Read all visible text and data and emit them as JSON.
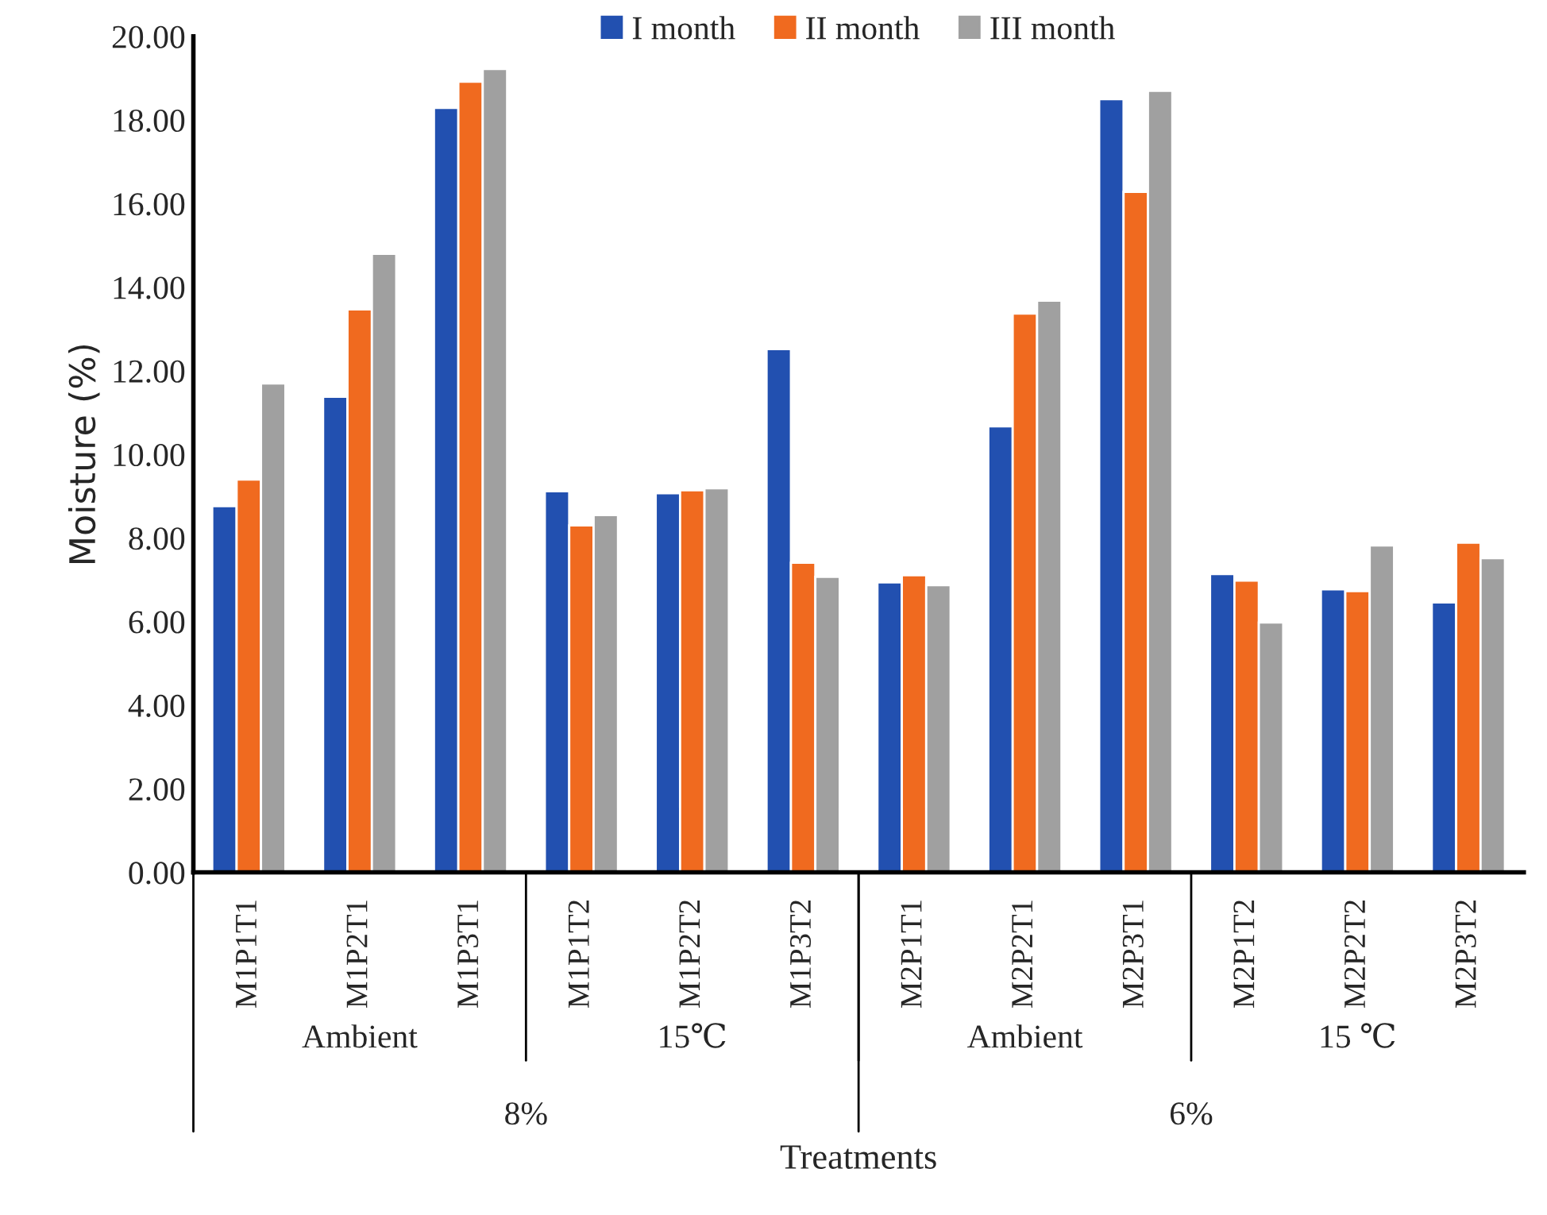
{
  "chart_data": {
    "type": "bar",
    "xlabel": "Treatments",
    "ylabel": "Moisture (%)",
    "categories": [
      "M1P1T1",
      "M1P2T1",
      "M1P3T1",
      "M1P1T2",
      "M1P2T2",
      "M1P3T2",
      "M2P1T1",
      "M2P2T1",
      "M2P3T1",
      "M2P1T2",
      "M2P2T2",
      "M2P3T2"
    ],
    "series": [
      {
        "name": "I month",
        "color": "#2250b0",
        "values": [
          8.76,
          11.38,
          18.29,
          9.12,
          9.07,
          12.52,
          6.94,
          10.67,
          18.5,
          7.14,
          6.77,
          6.46
        ]
      },
      {
        "name": "II month",
        "color": "#f06a1f",
        "values": [
          9.4,
          13.47,
          18.92,
          8.3,
          9.14,
          7.41,
          7.11,
          13.37,
          16.28,
          6.98,
          6.73,
          7.89
        ]
      },
      {
        "name": "III month",
        "color": "#a0a0a0",
        "values": [
          11.7,
          14.8,
          19.22,
          8.55,
          9.19,
          7.07,
          6.87,
          13.68,
          18.7,
          5.98,
          7.82,
          7.52
        ]
      }
    ],
    "annotations": [
      "Ambient",
      "15℃",
      "Ambient",
      "15 ℃",
      "8%",
      "6%"
    ],
    "ylim": [
      0,
      20
    ],
    "yticks": [
      {
        "value": 0,
        "label": "0.00"
      },
      {
        "value": 2,
        "label": "2.00"
      },
      {
        "value": 4,
        "label": "4.00"
      },
      {
        "value": 6,
        "label": "6.00"
      },
      {
        "value": 8,
        "label": "8.00"
      },
      {
        "value": 10,
        "label": "10.00"
      },
      {
        "value": 12,
        "label": "12.00"
      },
      {
        "value": 14,
        "label": "14.00"
      },
      {
        "value": 16,
        "label": "16.00"
      },
      {
        "value": 18,
        "label": "18.00"
      },
      {
        "value": 20,
        "label": "20.00"
      }
    ],
    "grid": false,
    "legend": "top"
  }
}
